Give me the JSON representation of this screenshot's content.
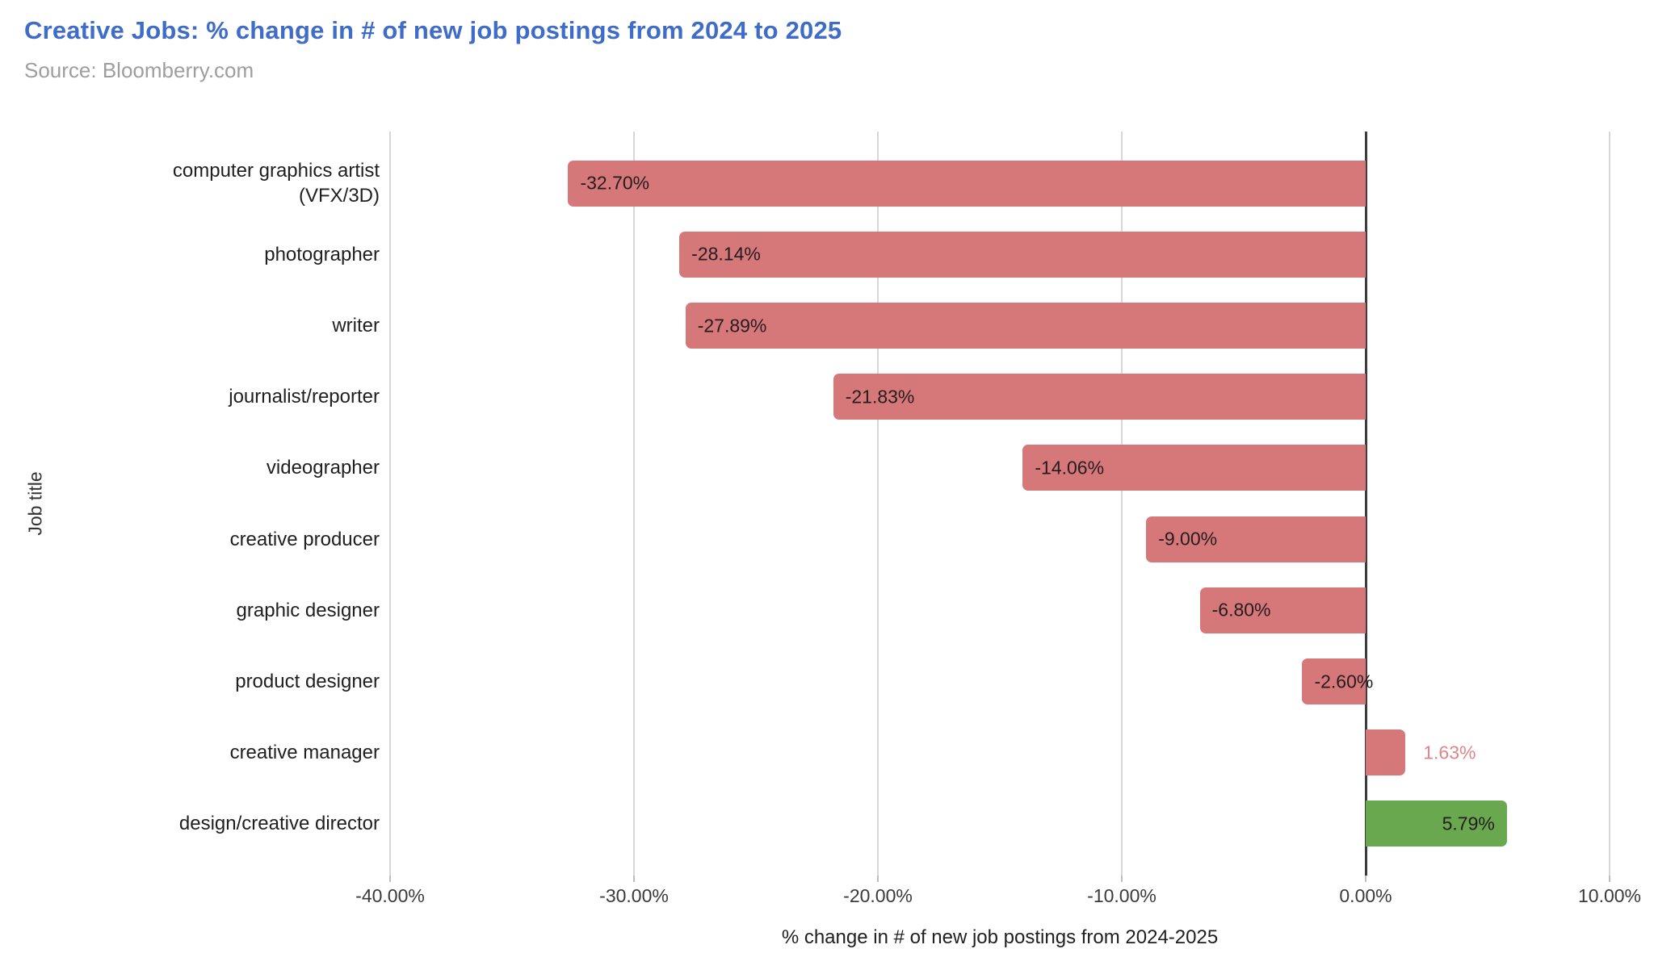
{
  "header": {
    "title": "Creative Jobs: % change in # of new job postings from 2024 to 2025",
    "source": "Source: Bloomberry.com"
  },
  "colors": {
    "title": "#3e6cc8",
    "source": "#9e9e9e",
    "negative_bar": "#d6777a",
    "positive_bar": "#6aa84f",
    "outside_label_text": "#df868b",
    "zero_line": "#3c3c3c",
    "gridline": "#d7d7d7"
  },
  "chart_data": {
    "type": "bar",
    "orientation": "horizontal",
    "title": "Creative Jobs: % change in # of new job postings from 2024 to 2025",
    "xlabel": "% change in # of new job postings from 2024-2025",
    "ylabel": "Job title",
    "xlim": [
      -40,
      10
    ],
    "grid": "vertical",
    "legend": "none",
    "categories": [
      "computer graphics artist (VFX/3D)",
      "photographer",
      "writer",
      "journalist/reporter",
      "videographer",
      "creative producer",
      "graphic designer",
      "product designer",
      "creative manager",
      "design/creative director"
    ],
    "values": [
      -32.7,
      -28.14,
      -27.89,
      -21.83,
      -14.06,
      -9.0,
      -6.8,
      -2.6,
      1.63,
      5.79
    ],
    "x_ticks": [
      {
        "value": -40,
        "label": "-40.00%"
      },
      {
        "value": -30,
        "label": "-30.00%"
      },
      {
        "value": -20,
        "label": "-20.00%"
      },
      {
        "value": -10,
        "label": "-10.00%"
      },
      {
        "value": 0,
        "label": "0.00%"
      },
      {
        "value": 10,
        "label": "10.00%"
      }
    ],
    "bars": [
      {
        "category": "computer graphics artist (VFX/3D)",
        "value": -32.7,
        "label": "-32.70%",
        "color": "negative_bar",
        "label_position": "inside-start"
      },
      {
        "category": "photographer",
        "value": -28.14,
        "label": "-28.14%",
        "color": "negative_bar",
        "label_position": "inside-start"
      },
      {
        "category": "writer",
        "value": -27.89,
        "label": "-27.89%",
        "color": "negative_bar",
        "label_position": "inside-start"
      },
      {
        "category": "journalist/reporter",
        "value": -21.83,
        "label": "-21.83%",
        "color": "negative_bar",
        "label_position": "inside-start"
      },
      {
        "category": "videographer",
        "value": -14.06,
        "label": "-14.06%",
        "color": "negative_bar",
        "label_position": "inside-start"
      },
      {
        "category": "creative producer",
        "value": -9.0,
        "label": "-9.00%",
        "color": "negative_bar",
        "label_position": "inside-start"
      },
      {
        "category": "graphic designer",
        "value": -6.8,
        "label": "-6.80%",
        "color": "negative_bar",
        "label_position": "inside-start"
      },
      {
        "category": "product designer",
        "value": -2.6,
        "label": "-2.60%",
        "color": "negative_bar",
        "label_position": "inside-start"
      },
      {
        "category": "creative manager",
        "value": 1.63,
        "label": "1.63%",
        "color": "negative_bar",
        "label_position": "outside-end"
      },
      {
        "category": "design/creative director",
        "value": 5.79,
        "label": "5.79%",
        "color": "positive_bar",
        "label_position": "inside-end"
      }
    ]
  }
}
